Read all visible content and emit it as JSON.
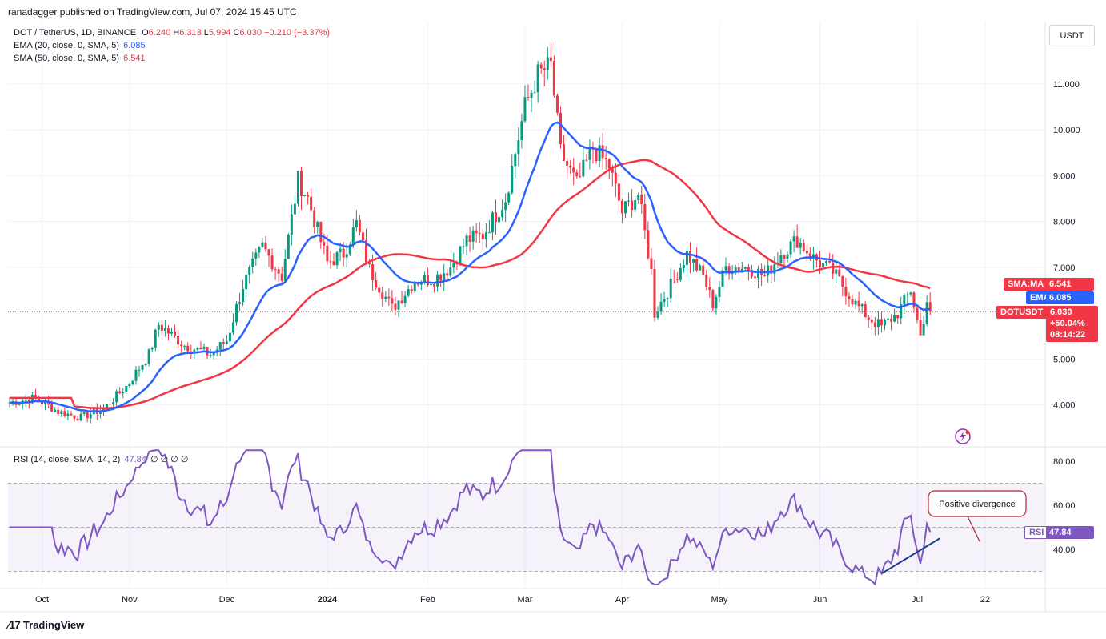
{
  "publisher": "ranadagger published on TradingView.com, Jul 07, 2024 15:45 UTC",
  "legend": {
    "symbol": "DOT / TetherUS, 1D, BINANCE",
    "o_label": "O",
    "o": "6.240",
    "h_label": "H",
    "h": "6.313",
    "l_label": "L",
    "l": "5.994",
    "c_label": "C",
    "c": "6.030",
    "change": "−0.210 (−3.37%)",
    "ema": "EMA (20, close, 0, SMA, 5)",
    "ema_val": "6.085",
    "sma": "SMA (50, close, 0, SMA, 5)",
    "sma_val": "6.541",
    "rsi": "RSI (14, close, SMA, 14, 2)",
    "rsi_val": "47.84",
    "rsi_extra": "∅ ∅ ∅ ∅"
  },
  "currency": "USDT",
  "tags": {
    "sma_ma": "SMA:MA",
    "ema": "EMA",
    "dotusdt": "DOTUSDT",
    "rsi": "RSI",
    "sma_val": "6.541",
    "ema_val": "6.085",
    "price": "6.030",
    "pct": "+50.04%",
    "countdown": "08:14:22",
    "rsi_val": "47.84"
  },
  "annotation": "Positive divergence",
  "brand": "TradingView",
  "colors": {
    "up": "#089981",
    "down": "#f23645",
    "ema": "#2962ff",
    "sma": "#f23645",
    "rsi": "#7e57c2",
    "rsi_band": "#7e57c2"
  },
  "chart_data": [
    {
      "type": "candlestick",
      "title": "DOT / TetherUS, 1D, BINANCE",
      "x_ticks": [
        "Oct",
        "Nov",
        "Dec",
        "2024",
        "Feb",
        "Mar",
        "Apr",
        "May",
        "Jun",
        "Jul",
        "22"
      ],
      "y_ticks": [
        "4.000",
        "5.000",
        "6.000",
        "7.000",
        "8.000",
        "9.000",
        "10.000",
        "11.000"
      ],
      "ylim": [
        3.2,
        12.2
      ],
      "close_anchors": [
        [
          "Sep 27",
          4.05
        ],
        [
          "Oct 5",
          4.15
        ],
        [
          "Oct 12",
          3.85
        ],
        [
          "Oct 19",
          3.72
        ],
        [
          "Oct 26",
          3.92
        ],
        [
          "Nov 2",
          4.4
        ],
        [
          "Nov 9",
          5.1
        ],
        [
          "Nov 12",
          5.75
        ],
        [
          "Nov 20",
          5.3
        ],
        [
          "Nov 28",
          5.1
        ],
        [
          "Dec 3",
          5.4
        ],
        [
          "Dec 8",
          6.6
        ],
        [
          "Dec 14",
          7.45
        ],
        [
          "Dec 20",
          6.8
        ],
        [
          "Dec 25",
          8.9
        ],
        [
          "Dec 28",
          8.5
        ],
        [
          "Jan 3",
          7.1
        ],
        [
          "Jan 8",
          7.3
        ],
        [
          "Jan 12",
          7.95
        ],
        [
          "Jan 16",
          6.95
        ],
        [
          "Jan 23",
          6.1
        ],
        [
          "Jan 30",
          6.7
        ],
        [
          "Feb 5",
          6.75
        ],
        [
          "Feb 10",
          7.0
        ],
        [
          "Feb 15",
          7.6
        ],
        [
          "Feb 20",
          7.7
        ],
        [
          "Feb 27",
          8.5
        ],
        [
          "Mar 4",
          10.5
        ],
        [
          "Mar 8",
          11.2
        ],
        [
          "Mar 12",
          11.4
        ],
        [
          "Mar 15",
          9.5
        ],
        [
          "Mar 20",
          8.8
        ],
        [
          "Mar 25",
          9.6
        ],
        [
          "Mar 30",
          9.2
        ],
        [
          "Apr 3",
          8.2
        ],
        [
          "Apr 8",
          8.6
        ],
        [
          "Apr 12",
          6.9
        ],
        [
          "Apr 13",
          6.0
        ],
        [
          "Apr 18",
          6.6
        ],
        [
          "Apr 23",
          7.3
        ],
        [
          "Apr 28",
          6.8
        ],
        [
          "May 1",
          6.2
        ],
        [
          "May 5",
          7.0
        ],
        [
          "May 12",
          7.0
        ],
        [
          "May 17",
          6.8
        ],
        [
          "May 22",
          7.3
        ],
        [
          "May 27",
          7.6
        ],
        [
          "Jun 1",
          7.2
        ],
        [
          "Jun 7",
          6.9
        ],
        [
          "Jun 11",
          6.5
        ],
        [
          "Jun 14",
          6.2
        ],
        [
          "Jun 18",
          5.9
        ],
        [
          "Jun 22",
          5.7
        ],
        [
          "Jun 27",
          6.0
        ],
        [
          "Jul 1",
          6.5
        ],
        [
          "Jul 4",
          5.5
        ],
        [
          "Jul 6",
          6.24
        ],
        [
          "Jul 7",
          6.03
        ]
      ],
      "ema20_last": 6.085,
      "sma50_last": 6.541,
      "last_price": 6.03
    },
    {
      "type": "line",
      "title": "RSI (14, close, SMA, 14, 2)",
      "y_ticks": [
        "40.00",
        "60.00",
        "80.00"
      ],
      "ylim": [
        20,
        90
      ],
      "bands": [
        30,
        50,
        70
      ],
      "last": 47.84,
      "annotation": "Positive divergence",
      "divergence_line": [
        [
          "Jun 22",
          29
        ],
        [
          "Jul 10",
          45
        ]
      ]
    }
  ]
}
